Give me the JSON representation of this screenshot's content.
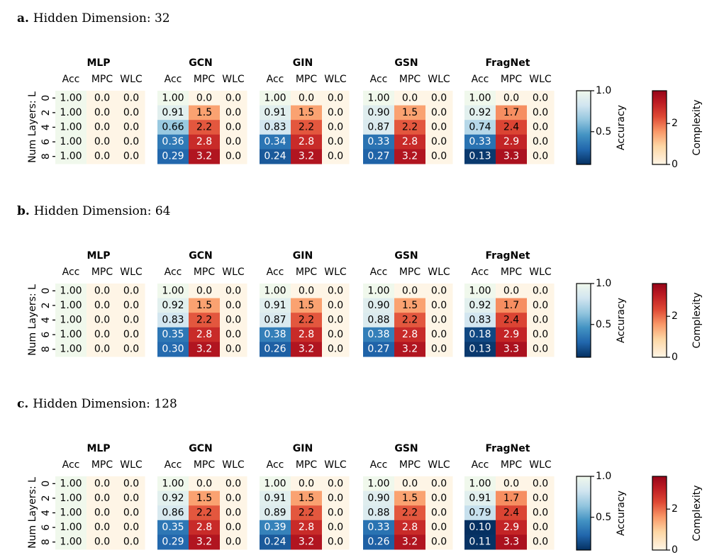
{
  "chart_data": {
    "type": "heatmap",
    "models": [
      "MLP",
      "GCN",
      "GIN",
      "GSN",
      "FragNet"
    ],
    "metrics": [
      "Acc",
      "MPC",
      "WLC"
    ],
    "num_layers": [
      "0",
      "2",
      "4",
      "6",
      "8"
    ],
    "ylabel": "Num Layers: L",
    "colorbars": [
      {
        "label": "Accuracy",
        "ticks": [
          "0.5",
          "1.0"
        ],
        "range": [
          0.1,
          1.0
        ],
        "colormap": "RdBu (upper half)"
      },
      {
        "label": "Complexity",
        "ticks": [
          "0",
          "2"
        ],
        "range": [
          0,
          3.6
        ],
        "colormap": "OrRd-like"
      }
    ],
    "panels": [
      {
        "letter": "a.",
        "title": "Hidden Dimension: 32",
        "data": {
          "MLP": {
            "Acc": [
              "1.00",
              "1.00",
              "1.00",
              "1.00",
              "1.00"
            ],
            "MPC": [
              "0.0",
              "0.0",
              "0.0",
              "0.0",
              "0.0"
            ],
            "WLC": [
              "0.0",
              "0.0",
              "0.0",
              "0.0",
              "0.0"
            ]
          },
          "GCN": {
            "Acc": [
              "1.00",
              "0.91",
              "0.66",
              "0.36",
              "0.29"
            ],
            "MPC": [
              "0.0",
              "1.5",
              "2.2",
              "2.8",
              "3.2"
            ],
            "WLC": [
              "0.0",
              "0.0",
              "0.0",
              "0.0",
              "0.0"
            ]
          },
          "GIN": {
            "Acc": [
              "1.00",
              "0.91",
              "0.83",
              "0.34",
              "0.24"
            ],
            "MPC": [
              "0.0",
              "1.5",
              "2.2",
              "2.8",
              "3.2"
            ],
            "WLC": [
              "0.0",
              "0.0",
              "0.0",
              "0.0",
              "0.0"
            ]
          },
          "GSN": {
            "Acc": [
              "1.00",
              "0.90",
              "0.87",
              "0.33",
              "0.27"
            ],
            "MPC": [
              "0.0",
              "1.5",
              "2.2",
              "2.8",
              "3.2"
            ],
            "WLC": [
              "0.0",
              "0.0",
              "0.0",
              "0.0",
              "0.0"
            ]
          },
          "FragNet": {
            "Acc": [
              "1.00",
              "0.92",
              "0.74",
              "0.33",
              "0.13"
            ],
            "MPC": [
              "0.0",
              "1.7",
              "2.4",
              "2.9",
              "3.3"
            ],
            "WLC": [
              "0.0",
              "0.0",
              "0.0",
              "0.0",
              "0.0"
            ]
          }
        }
      },
      {
        "letter": "b.",
        "title": "Hidden Dimension: 64",
        "data": {
          "MLP": {
            "Acc": [
              "1.00",
              "1.00",
              "1.00",
              "1.00",
              "1.00"
            ],
            "MPC": [
              "0.0",
              "0.0",
              "0.0",
              "0.0",
              "0.0"
            ],
            "WLC": [
              "0.0",
              "0.0",
              "0.0",
              "0.0",
              "0.0"
            ]
          },
          "GCN": {
            "Acc": [
              "1.00",
              "0.92",
              "0.83",
              "0.35",
              "0.30"
            ],
            "MPC": [
              "0.0",
              "1.5",
              "2.2",
              "2.8",
              "3.2"
            ],
            "WLC": [
              "0.0",
              "0.0",
              "0.0",
              "0.0",
              "0.0"
            ]
          },
          "GIN": {
            "Acc": [
              "1.00",
              "0.91",
              "0.87",
              "0.38",
              "0.26"
            ],
            "MPC": [
              "0.0",
              "1.5",
              "2.2",
              "2.8",
              "3.2"
            ],
            "WLC": [
              "0.0",
              "0.0",
              "0.0",
              "0.0",
              "0.0"
            ]
          },
          "GSN": {
            "Acc": [
              "1.00",
              "0.90",
              "0.88",
              "0.38",
              "0.27"
            ],
            "MPC": [
              "0.0",
              "1.5",
              "2.2",
              "2.8",
              "3.2"
            ],
            "WLC": [
              "0.0",
              "0.0",
              "0.0",
              "0.0",
              "0.0"
            ]
          },
          "FragNet": {
            "Acc": [
              "1.00",
              "0.92",
              "0.83",
              "0.18",
              "0.13"
            ],
            "MPC": [
              "0.0",
              "1.7",
              "2.4",
              "2.9",
              "3.3"
            ],
            "WLC": [
              "0.0",
              "0.0",
              "0.0",
              "0.0",
              "0.0"
            ]
          }
        }
      },
      {
        "letter": "c.",
        "title": "Hidden Dimension: 128",
        "data": {
          "MLP": {
            "Acc": [
              "1.00",
              "1.00",
              "1.00",
              "1.00",
              "1.00"
            ],
            "MPC": [
              "0.0",
              "0.0",
              "0.0",
              "0.0",
              "0.0"
            ],
            "WLC": [
              "0.0",
              "0.0",
              "0.0",
              "0.0",
              "0.0"
            ]
          },
          "GCN": {
            "Acc": [
              "1.00",
              "0.92",
              "0.86",
              "0.35",
              "0.29"
            ],
            "MPC": [
              "0.0",
              "1.5",
              "2.2",
              "2.8",
              "3.2"
            ],
            "WLC": [
              "0.0",
              "0.0",
              "0.0",
              "0.0",
              "0.0"
            ]
          },
          "GIN": {
            "Acc": [
              "1.00",
              "0.91",
              "0.89",
              "0.39",
              "0.24"
            ],
            "MPC": [
              "0.0",
              "1.5",
              "2.2",
              "2.8",
              "3.2"
            ],
            "WLC": [
              "0.0",
              "0.0",
              "0.0",
              "0.0",
              "0.0"
            ]
          },
          "GSN": {
            "Acc": [
              "1.00",
              "0.90",
              "0.88",
              "0.33",
              "0.26"
            ],
            "MPC": [
              "0.0",
              "1.5",
              "2.2",
              "2.8",
              "3.2"
            ],
            "WLC": [
              "0.0",
              "0.0",
              "0.0",
              "0.0",
              "0.0"
            ]
          },
          "FragNet": {
            "Acc": [
              "1.00",
              "0.91",
              "0.79",
              "0.10",
              "0.11"
            ],
            "MPC": [
              "0.0",
              "1.7",
              "2.4",
              "2.9",
              "3.3"
            ],
            "WLC": [
              "0.0",
              "0.0",
              "0.0",
              "0.0",
              "0.0"
            ]
          }
        }
      }
    ]
  }
}
